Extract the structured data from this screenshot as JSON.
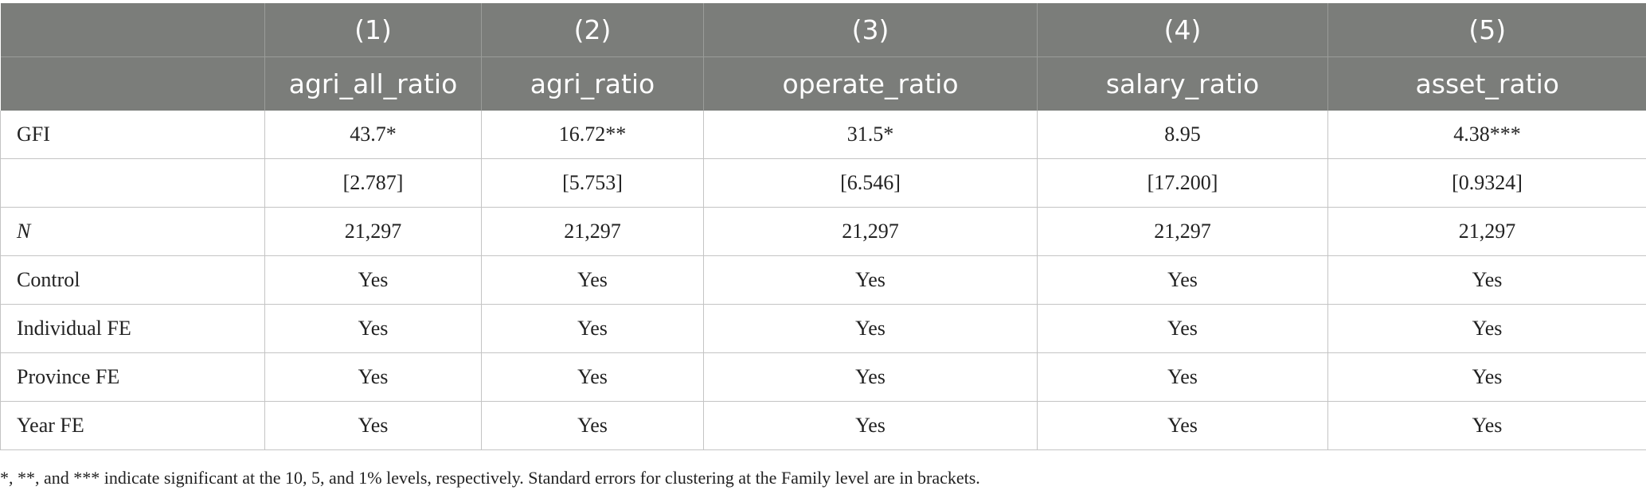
{
  "table": {
    "column_numbers": [
      "(1)",
      "(2)",
      "(3)",
      "(4)",
      "(5)"
    ],
    "column_names": [
      "agri_all_ratio",
      "agri_ratio",
      "operate_ratio",
      "salary_ratio",
      "asset_ratio"
    ],
    "rows": [
      {
        "label": "GFI",
        "values": [
          "43.7*",
          "16.72**",
          "31.5*",
          "8.95",
          "4.38***"
        ]
      },
      {
        "label": "",
        "values": [
          "[2.787]",
          "[5.753]",
          "[6.546]",
          "[17.200]",
          "[0.9324]"
        ]
      },
      {
        "label": "N",
        "values": [
          "21,297",
          "21,297",
          "21,297",
          "21,297",
          "21,297"
        ]
      },
      {
        "label": "Control",
        "values": [
          "Yes",
          "Yes",
          "Yes",
          "Yes",
          "Yes"
        ]
      },
      {
        "label": "Individual FE",
        "values": [
          "Yes",
          "Yes",
          "Yes",
          "Yes",
          "Yes"
        ]
      },
      {
        "label": "Province FE",
        "values": [
          "Yes",
          "Yes",
          "Yes",
          "Yes",
          "Yes"
        ]
      },
      {
        "label": "Year FE",
        "values": [
          "Yes",
          "Yes",
          "Yes",
          "Yes",
          "Yes"
        ]
      }
    ]
  },
  "footnote": "*, **, and *** indicate significant at the 10, 5, and 1% levels, respectively. Standard errors for clustering at the Family level are in brackets.",
  "colors": {
    "header_bg": "#7b7d7a",
    "header_text": "#ffffff",
    "grid": "#c4c4c4"
  }
}
